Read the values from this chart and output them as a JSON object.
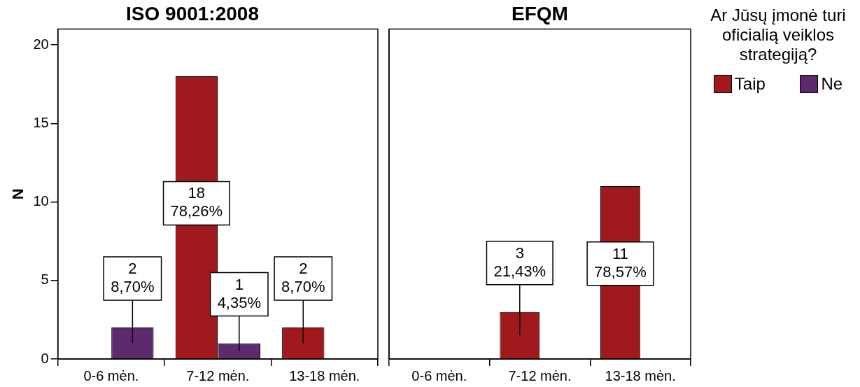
{
  "chart_data": [
    {
      "type": "bar",
      "title": "ISO 9001:2008",
      "ylabel": "N",
      "categories": [
        "0-6 mėn.",
        "7-12 mėn.",
        "13-18 mėn."
      ],
      "series": [
        {
          "color": "#a0191c",
          "values": [
            0,
            18,
            2
          ],
          "value_labels": [
            null,
            "18\n78,26%",
            "2\n8,70%"
          ]
        },
        {
          "color": "#5e2a6e",
          "values": [
            2,
            1,
            null
          ],
          "value_labels": [
            "2\n8,70%",
            "1\n4,35%",
            null
          ]
        }
      ],
      "ylim": [
        0,
        21
      ],
      "yticks": [
        0,
        5,
        10,
        15,
        20
      ],
      "grid": false,
      "legend": false
    },
    {
      "type": "bar",
      "title": "EFQM",
      "legend_title": "Ar Jūsų įmonė turi oficialią veiklos strategiją?",
      "categories": [
        "0-6 mėn.",
        "7-12 mėn.",
        "13-18 mėn."
      ],
      "series": [
        {
          "name": "Taip",
          "color": "#a0191c",
          "values": [
            null,
            3,
            11
          ],
          "value_labels": [
            null,
            "3\n21,43%",
            "11\n78,57%"
          ]
        },
        {
          "name": "Ne",
          "color": "#5e2a6e",
          "values": [
            null,
            null,
            null
          ]
        }
      ],
      "ylim": [
        0,
        21
      ],
      "yticks": [
        0,
        5,
        10,
        15,
        20
      ],
      "tick_labels": "x",
      "grid": false,
      "legend": "right"
    }
  ]
}
